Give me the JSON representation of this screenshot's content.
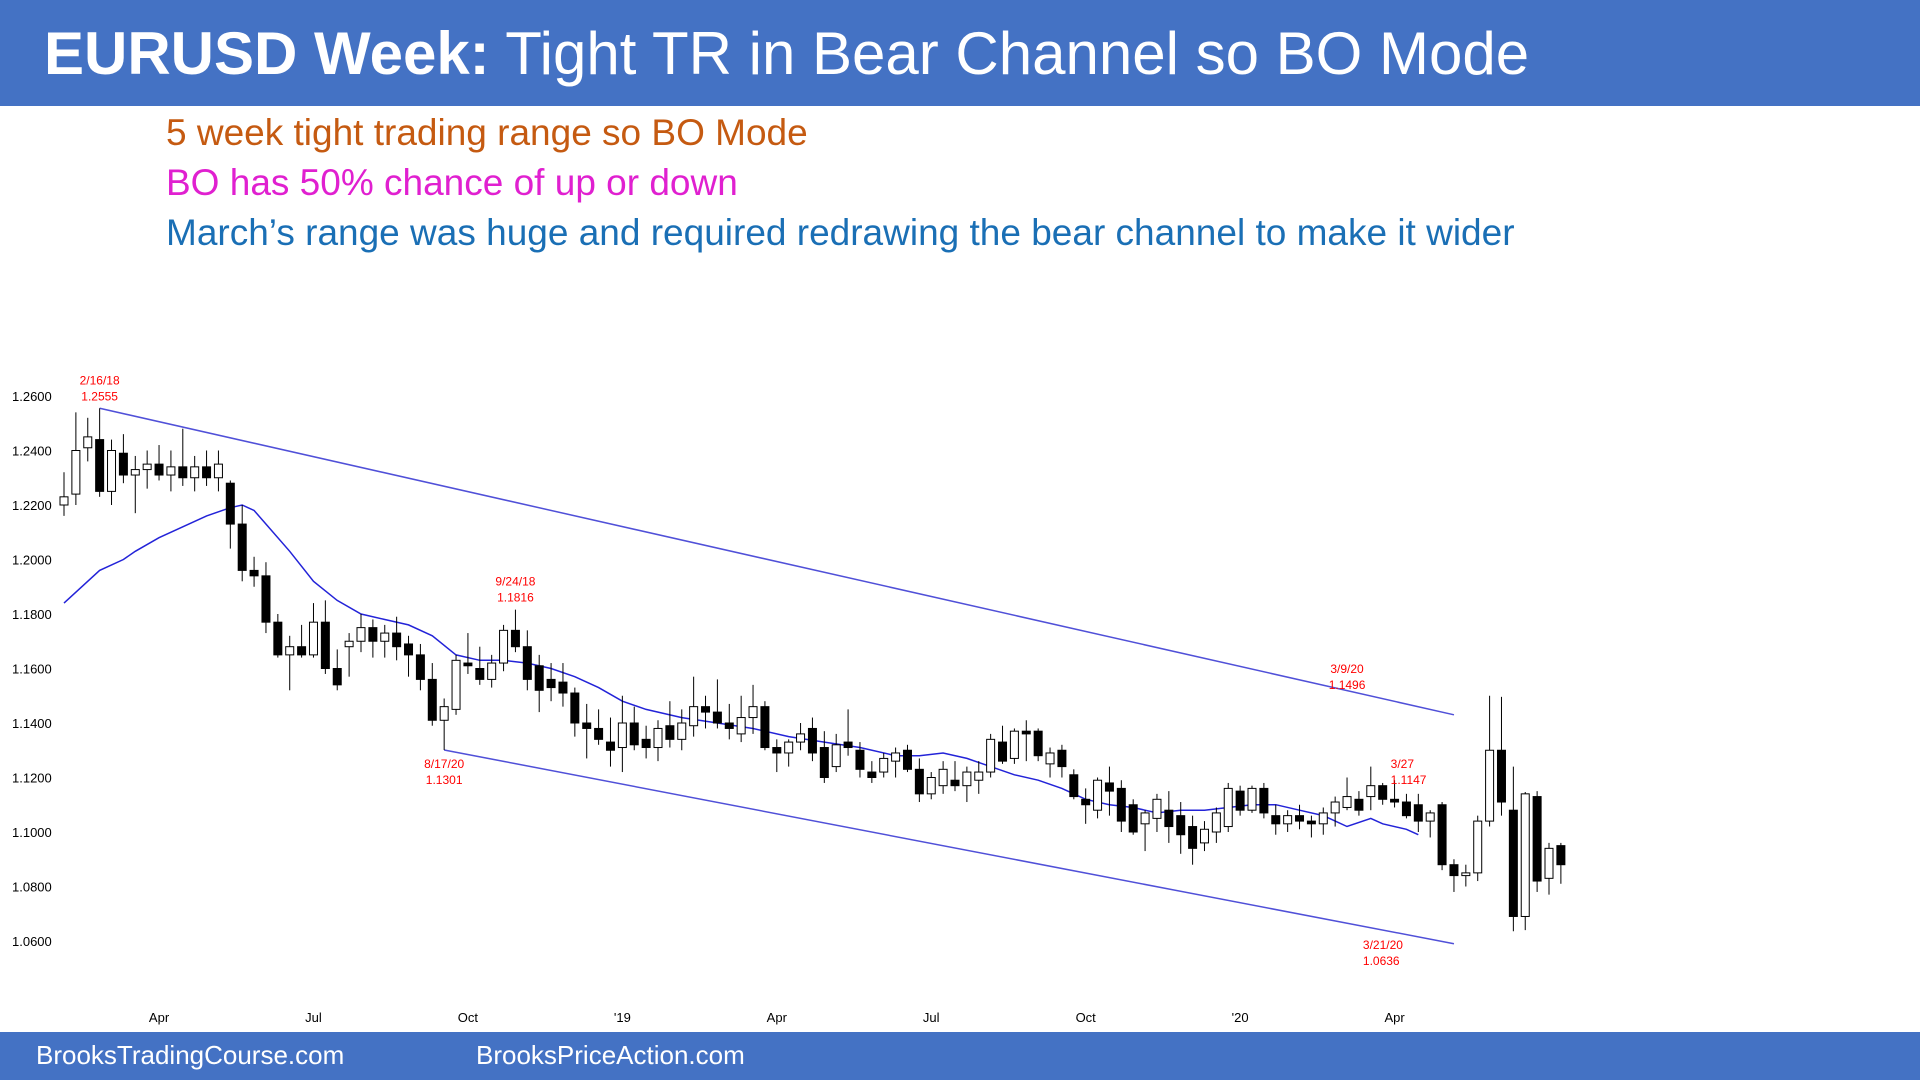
{
  "header": {
    "title_bold": "EURUSD Week:",
    "title_rest": " Tight TR in Bear Channel so BO Mode"
  },
  "notes": [
    {
      "text": "5 week tight trading range so BO Mode",
      "color": "#c55a11"
    },
    {
      "text": "BO has 50% chance of up or down",
      "color": "#e020d0"
    },
    {
      "text": "March’s range was huge and required redrawing the bear channel to make it wider",
      "color": "#1a6fb5"
    }
  ],
  "footer": {
    "link1": "BrooksTradingCourse.com",
    "link2": "BrooksPriceAction.com"
  },
  "chart_data": {
    "type": "candlestick",
    "title": "",
    "xlabel": "",
    "ylabel": "",
    "ylim": [
      1.05,
      1.27
    ],
    "yticks": [
      "1.2600",
      "1.2400",
      "1.2200",
      "1.2000",
      "1.1800",
      "1.1600",
      "1.1400",
      "1.1200",
      "1.1000",
      "1.0800",
      "1.0600"
    ],
    "xtick_labels": [
      {
        "label": "Apr",
        "week": 8
      },
      {
        "label": "Jul",
        "week": 21
      },
      {
        "label": "Oct",
        "week": 34
      },
      {
        "label": "'19",
        "week": 47
      },
      {
        "label": "Apr",
        "week": 60
      },
      {
        "label": "Jul",
        "week": 73
      },
      {
        "label": "Oct",
        "week": 86
      },
      {
        "label": "'20",
        "week": 99
      },
      {
        "label": "Apr",
        "week": 112
      }
    ],
    "ohlc": [
      [
        1.22,
        1.232,
        1.216,
        1.223
      ],
      [
        1.224,
        1.254,
        1.22,
        1.24
      ],
      [
        1.241,
        1.252,
        1.236,
        1.245
      ],
      [
        1.244,
        1.2555,
        1.223,
        1.225
      ],
      [
        1.225,
        1.244,
        1.22,
        1.24
      ],
      [
        1.239,
        1.246,
        1.228,
        1.231
      ],
      [
        1.231,
        1.238,
        1.217,
        1.233
      ],
      [
        1.233,
        1.24,
        1.226,
        1.235
      ],
      [
        1.235,
        1.242,
        1.229,
        1.231
      ],
      [
        1.231,
        1.24,
        1.225,
        1.234
      ],
      [
        1.234,
        1.248,
        1.227,
        1.23
      ],
      [
        1.23,
        1.238,
        1.225,
        1.234
      ],
      [
        1.234,
        1.24,
        1.227,
        1.23
      ],
      [
        1.23,
        1.24,
        1.225,
        1.235
      ],
      [
        1.228,
        1.229,
        1.204,
        1.213
      ],
      [
        1.213,
        1.22,
        1.192,
        1.196
      ],
      [
        1.196,
        1.201,
        1.19,
        1.194
      ],
      [
        1.194,
        1.199,
        1.173,
        1.177
      ],
      [
        1.177,
        1.18,
        1.164,
        1.165
      ],
      [
        1.165,
        1.172,
        1.152,
        1.168
      ],
      [
        1.168,
        1.176,
        1.164,
        1.165
      ],
      [
        1.165,
        1.184,
        1.164,
        1.177
      ],
      [
        1.177,
        1.185,
        1.158,
        1.16
      ],
      [
        1.16,
        1.167,
        1.152,
        1.154
      ],
      [
        1.168,
        1.173,
        1.157,
        1.17
      ],
      [
        1.17,
        1.18,
        1.166,
        1.175
      ],
      [
        1.175,
        1.178,
        1.164,
        1.17
      ],
      [
        1.17,
        1.176,
        1.164,
        1.173
      ],
      [
        1.173,
        1.179,
        1.163,
        1.168
      ],
      [
        1.169,
        1.172,
        1.157,
        1.165
      ],
      [
        1.165,
        1.169,
        1.152,
        1.156
      ],
      [
        1.156,
        1.162,
        1.139,
        1.141
      ],
      [
        1.141,
        1.149,
        1.1301,
        1.146
      ],
      [
        1.145,
        1.165,
        1.143,
        1.163
      ],
      [
        1.162,
        1.173,
        1.158,
        1.161
      ],
      [
        1.16,
        1.168,
        1.154,
        1.156
      ],
      [
        1.156,
        1.165,
        1.153,
        1.162
      ],
      [
        1.162,
        1.176,
        1.159,
        1.174
      ],
      [
        1.174,
        1.1816,
        1.166,
        1.168
      ],
      [
        1.168,
        1.174,
        1.152,
        1.156
      ],
      [
        1.161,
        1.165,
        1.144,
        1.152
      ],
      [
        1.156,
        1.162,
        1.148,
        1.153
      ],
      [
        1.155,
        1.162,
        1.146,
        1.151
      ],
      [
        1.151,
        1.153,
        1.135,
        1.14
      ],
      [
        1.14,
        1.147,
        1.127,
        1.138
      ],
      [
        1.138,
        1.145,
        1.132,
        1.134
      ],
      [
        1.133,
        1.142,
        1.124,
        1.13
      ],
      [
        1.131,
        1.15,
        1.122,
        1.14
      ],
      [
        1.14,
        1.146,
        1.13,
        1.132
      ],
      [
        1.134,
        1.139,
        1.127,
        1.131
      ],
      [
        1.131,
        1.141,
        1.126,
        1.138
      ],
      [
        1.139,
        1.148,
        1.131,
        1.134
      ],
      [
        1.134,
        1.145,
        1.13,
        1.14
      ],
      [
        1.139,
        1.157,
        1.135,
        1.146
      ],
      [
        1.146,
        1.15,
        1.138,
        1.144
      ],
      [
        1.144,
        1.156,
        1.138,
        1.14
      ],
      [
        1.14,
        1.147,
        1.134,
        1.138
      ],
      [
        1.136,
        1.15,
        1.133,
        1.142
      ],
      [
        1.142,
        1.154,
        1.136,
        1.146
      ],
      [
        1.146,
        1.148,
        1.13,
        1.131
      ],
      [
        1.131,
        1.134,
        1.122,
        1.129
      ],
      [
        1.129,
        1.134,
        1.124,
        1.133
      ],
      [
        1.133,
        1.14,
        1.13,
        1.136
      ],
      [
        1.138,
        1.142,
        1.126,
        1.129
      ],
      [
        1.131,
        1.137,
        1.118,
        1.12
      ],
      [
        1.124,
        1.136,
        1.122,
        1.132
      ],
      [
        1.133,
        1.145,
        1.128,
        1.131
      ],
      [
        1.13,
        1.133,
        1.12,
        1.123
      ],
      [
        1.122,
        1.126,
        1.118,
        1.12
      ],
      [
        1.122,
        1.129,
        1.12,
        1.127
      ],
      [
        1.126,
        1.131,
        1.12,
        1.129
      ],
      [
        1.13,
        1.132,
        1.122,
        1.123
      ],
      [
        1.123,
        1.127,
        1.111,
        1.114
      ],
      [
        1.114,
        1.122,
        1.112,
        1.12
      ],
      [
        1.117,
        1.126,
        1.114,
        1.123
      ],
      [
        1.119,
        1.126,
        1.115,
        1.117
      ],
      [
        1.117,
        1.124,
        1.111,
        1.122
      ],
      [
        1.119,
        1.126,
        1.114,
        1.122
      ],
      [
        1.122,
        1.136,
        1.12,
        1.134
      ],
      [
        1.133,
        1.139,
        1.125,
        1.126
      ],
      [
        1.127,
        1.138,
        1.125,
        1.137
      ],
      [
        1.137,
        1.141,
        1.126,
        1.136
      ],
      [
        1.137,
        1.138,
        1.126,
        1.128
      ],
      [
        1.125,
        1.131,
        1.12,
        1.129
      ],
      [
        1.13,
        1.132,
        1.12,
        1.124
      ],
      [
        1.121,
        1.123,
        1.112,
        1.113
      ],
      [
        1.112,
        1.116,
        1.103,
        1.11
      ],
      [
        1.108,
        1.12,
        1.105,
        1.119
      ],
      [
        1.118,
        1.124,
        1.106,
        1.115
      ],
      [
        1.116,
        1.119,
        1.1,
        1.104
      ],
      [
        1.11,
        1.112,
        1.099,
        1.1
      ],
      [
        1.103,
        1.108,
        1.093,
        1.107
      ],
      [
        1.105,
        1.114,
        1.1,
        1.112
      ],
      [
        1.108,
        1.115,
        1.096,
        1.102
      ],
      [
        1.106,
        1.111,
        1.092,
        1.099
      ],
      [
        1.102,
        1.106,
        1.088,
        1.094
      ],
      [
        1.096,
        1.104,
        1.093,
        1.101
      ],
      [
        1.1,
        1.109,
        1.096,
        1.107
      ],
      [
        1.102,
        1.118,
        1.1,
        1.116
      ],
      [
        1.115,
        1.117,
        1.106,
        1.108
      ],
      [
        1.108,
        1.117,
        1.107,
        1.116
      ],
      [
        1.116,
        1.118,
        1.105,
        1.107
      ],
      [
        1.106,
        1.11,
        1.099,
        1.103
      ],
      [
        1.103,
        1.108,
        1.1,
        1.106
      ],
      [
        1.106,
        1.11,
        1.101,
        1.104
      ],
      [
        1.104,
        1.106,
        1.098,
        1.103
      ],
      [
        1.103,
        1.109,
        1.099,
        1.107
      ],
      [
        1.107,
        1.113,
        1.102,
        1.111
      ],
      [
        1.109,
        1.12,
        1.108,
        1.113
      ],
      [
        1.112,
        1.115,
        1.106,
        1.108
      ],
      [
        1.113,
        1.124,
        1.108,
        1.117
      ],
      [
        1.117,
        1.118,
        1.11,
        1.112
      ],
      [
        1.112,
        1.119,
        1.109,
        1.111
      ],
      [
        1.111,
        1.114,
        1.105,
        1.106
      ],
      [
        1.11,
        1.114,
        1.1,
        1.104
      ],
      [
        1.104,
        1.108,
        1.098,
        1.107
      ],
      [
        1.11,
        1.111,
        1.086,
        1.088
      ],
      [
        1.088,
        1.09,
        1.078,
        1.084
      ],
      [
        1.084,
        1.088,
        1.08,
        1.085
      ],
      [
        1.085,
        1.106,
        1.082,
        1.104
      ],
      [
        1.104,
        1.15,
        1.102,
        1.13
      ],
      [
        1.13,
        1.1496,
        1.106,
        1.111
      ],
      [
        1.108,
        1.124,
        1.0636,
        1.069
      ],
      [
        1.069,
        1.1147,
        1.064,
        1.114
      ],
      [
        1.113,
        1.115,
        1.078,
        1.082
      ],
      [
        1.083,
        1.096,
        1.077,
        1.094
      ],
      [
        1.095,
        1.096,
        1.081,
        1.088
      ]
    ],
    "moving_average": [
      [
        0,
        1.184
      ],
      [
        3,
        1.196
      ],
      [
        5,
        1.2
      ],
      [
        6,
        1.203
      ],
      [
        8,
        1.208
      ],
      [
        10,
        1.212
      ],
      [
        12,
        1.216
      ],
      [
        14,
        1.219
      ],
      [
        15,
        1.22
      ],
      [
        16,
        1.218
      ],
      [
        17,
        1.213
      ],
      [
        19,
        1.203
      ],
      [
        21,
        1.192
      ],
      [
        23,
        1.185
      ],
      [
        25,
        1.18
      ],
      [
        27,
        1.178
      ],
      [
        29,
        1.176
      ],
      [
        31,
        1.172
      ],
      [
        33,
        1.165
      ],
      [
        35,
        1.163
      ],
      [
        37,
        1.163
      ],
      [
        39,
        1.162
      ],
      [
        41,
        1.16
      ],
      [
        43,
        1.157
      ],
      [
        45,
        1.153
      ],
      [
        47,
        1.148
      ],
      [
        49,
        1.145
      ],
      [
        52,
        1.142
      ],
      [
        55,
        1.14
      ],
      [
        58,
        1.138
      ],
      [
        61,
        1.135
      ],
      [
        64,
        1.133
      ],
      [
        67,
        1.131
      ],
      [
        70,
        1.128
      ],
      [
        72,
        1.128
      ],
      [
        74,
        1.129
      ],
      [
        76,
        1.127
      ],
      [
        78,
        1.124
      ],
      [
        80,
        1.121
      ],
      [
        82,
        1.119
      ],
      [
        84,
        1.116
      ],
      [
        86,
        1.112
      ],
      [
        88,
        1.11
      ],
      [
        90,
        1.109
      ],
      [
        92,
        1.107
      ],
      [
        94,
        1.108
      ],
      [
        96,
        1.108
      ],
      [
        98,
        1.109
      ],
      [
        100,
        1.11
      ],
      [
        102,
        1.11
      ],
      [
        104,
        1.108
      ],
      [
        106,
        1.106
      ],
      [
        107,
        1.104
      ],
      [
        108,
        1.102
      ],
      [
        110,
        1.105
      ],
      [
        111,
        1.103
      ],
      [
        113,
        1.101
      ],
      [
        114,
        1.099
      ]
    ],
    "channel_lines": [
      {
        "from": [
          3,
          1.2555
        ],
        "to": [
          117,
          1.143
        ]
      },
      {
        "from": [
          32,
          1.1301
        ],
        "to": [
          117,
          1.059
        ]
      }
    ],
    "annotations": [
      {
        "week": 3,
        "date": "2/16/18",
        "price": "1.2555",
        "pos": "above",
        "value": 1.2555
      },
      {
        "week": 38,
        "date": "9/24/18",
        "price": "1.1816",
        "pos": "above",
        "value": 1.1816
      },
      {
        "week": 32,
        "date": "8/17/20",
        "price": "1.1301",
        "pos": "below",
        "value": 1.1301
      },
      {
        "week": 108,
        "date": "3/9/20",
        "price": "1.1496",
        "pos": "above",
        "value": 1.1496
      },
      {
        "week": 111,
        "date": "3/27",
        "price": "1.1147",
        "pos": "above-right",
        "value": 1.1147
      },
      {
        "week": 109,
        "date": "3/21/20",
        "price": "1.0636",
        "pos": "below-right",
        "value": 1.0636
      }
    ],
    "colors": {
      "bull_body": "#ffffff",
      "bear_body": "#000000",
      "ma_line": "#2323d8",
      "channel_line": "#5050d8",
      "annotation": "#ff0000"
    }
  }
}
